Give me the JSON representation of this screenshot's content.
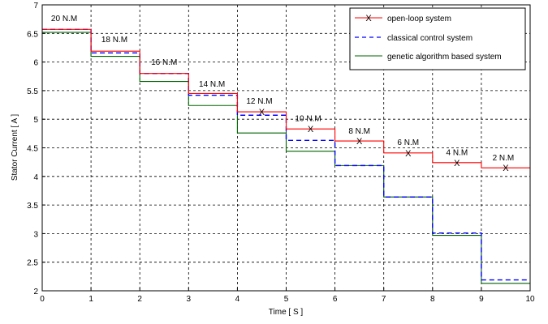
{
  "chart_data": {
    "type": "line",
    "title": "",
    "xlabel": "Time [ S ]",
    "ylabel": "Stator Current [ A ]",
    "xlim": [
      0,
      10
    ],
    "ylim": [
      2,
      7
    ],
    "xticks": [
      "0",
      "1",
      "2",
      "3",
      "4",
      "5",
      "6",
      "7",
      "8",
      "9",
      "10"
    ],
    "yticks": [
      "2",
      "2.5",
      "3",
      "3.5",
      "4",
      "4.5",
      "5",
      "5.5",
      "6",
      "6.5",
      "7"
    ],
    "grid": true,
    "legend_position": "top-right",
    "step_edges": [
      0,
      1,
      2,
      3,
      4,
      5,
      6,
      7,
      8,
      9,
      10
    ],
    "series": [
      {
        "name": "open-loop system",
        "color": "#ff0000",
        "style": "solid-with-x-markers",
        "values": [
          6.57,
          6.19,
          5.8,
          5.45,
          5.13,
          4.83,
          4.62,
          4.41,
          4.24,
          4.15
        ]
      },
      {
        "name": "classical control system",
        "color": "#0000ff",
        "style": "dashed",
        "values": [
          6.57,
          6.16,
          5.8,
          5.42,
          5.07,
          4.63,
          4.19,
          3.64,
          3.01,
          2.19
        ]
      },
      {
        "name": "genetic algorithm based system",
        "color": "#006400",
        "style": "solid",
        "values": [
          6.52,
          6.1,
          5.66,
          5.24,
          4.76,
          4.44,
          4.19,
          3.64,
          2.97,
          2.13
        ]
      }
    ],
    "annotations": [
      {
        "text": "20 N.M",
        "x": 0.45,
        "y": 6.72
      },
      {
        "text": "18 N.M",
        "x": 1.48,
        "y": 6.35
      },
      {
        "text": "16 N.M",
        "x": 2.5,
        "y": 5.95
      },
      {
        "text": "14 N.M",
        "x": 3.48,
        "y": 5.57
      },
      {
        "text": "12 N.M",
        "x": 4.45,
        "y": 5.27
      },
      {
        "text": "10 N.M",
        "x": 5.45,
        "y": 4.97
      },
      {
        "text": "8 N.M",
        "x": 6.5,
        "y": 4.75
      },
      {
        "text": "6 N.M",
        "x": 7.5,
        "y": 4.55
      },
      {
        "text": "4 N.M",
        "x": 8.5,
        "y": 4.37
      },
      {
        "text": "2 N.M",
        "x": 9.45,
        "y": 4.28
      }
    ]
  }
}
